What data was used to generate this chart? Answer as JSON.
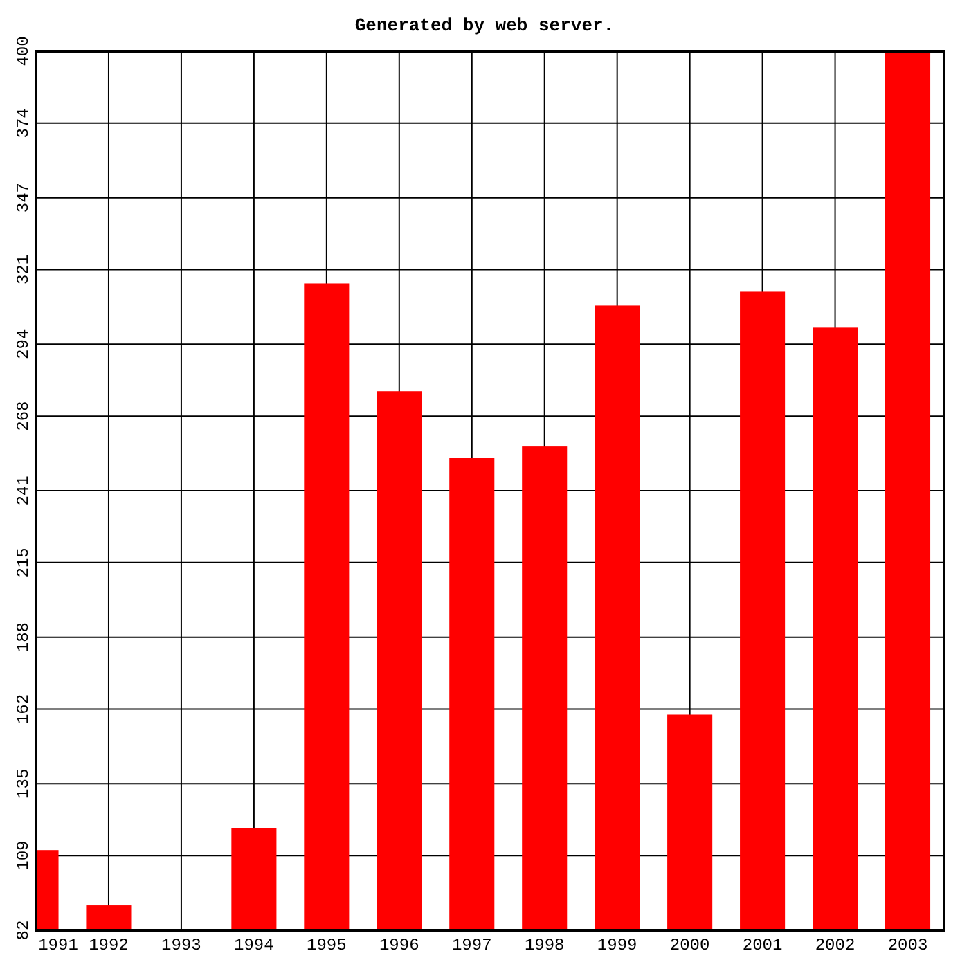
{
  "chart_data": {
    "type": "bar",
    "title": "Generated by web server.",
    "categories": [
      "1991",
      "1992",
      "1993",
      "1994",
      "1995",
      "1996",
      "1997",
      "1998",
      "1999",
      "2000",
      "2001",
      "2002",
      "2003"
    ],
    "values": [
      111,
      91,
      82,
      119,
      316,
      277,
      253,
      257,
      308,
      160,
      313,
      300,
      400
    ],
    "color": "#ff0000",
    "ylim": [
      82,
      400
    ],
    "yticks": [
      82,
      109,
      135,
      162,
      188,
      215,
      241,
      268,
      294,
      321,
      347,
      374,
      400
    ],
    "grid": true
  }
}
